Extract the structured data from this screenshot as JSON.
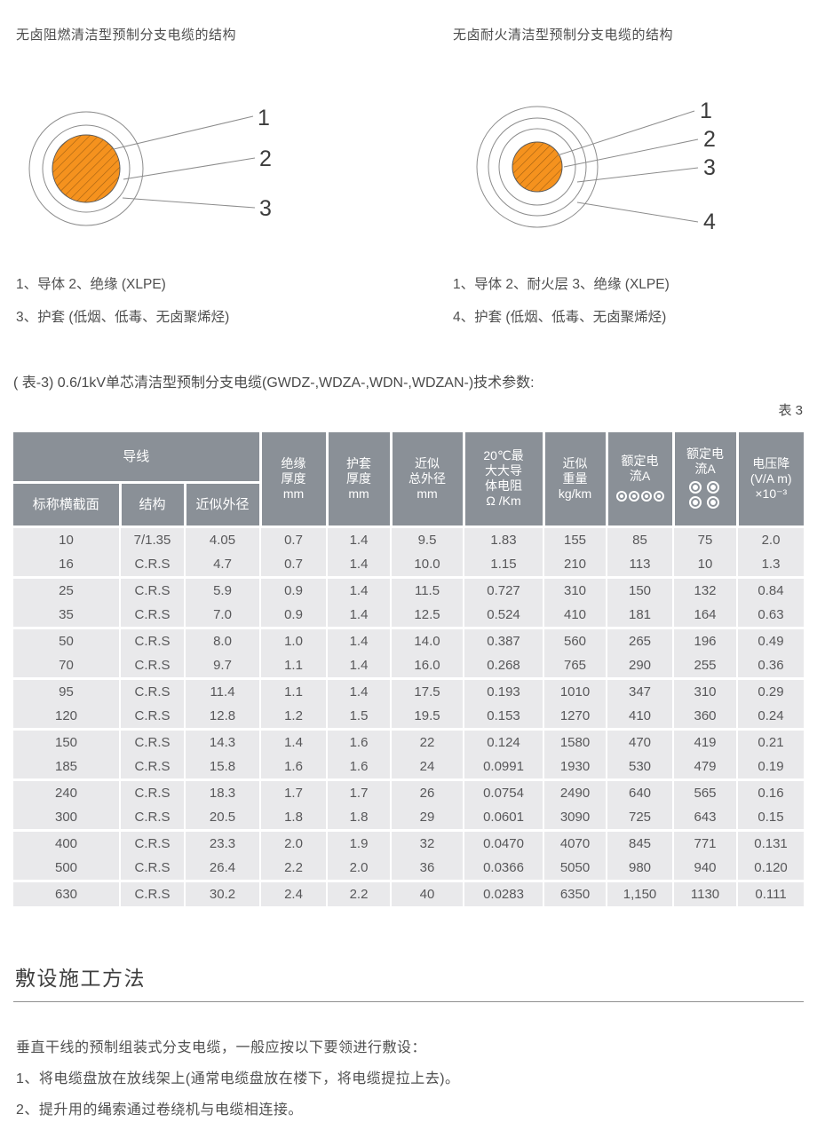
{
  "diagrams": {
    "left": {
      "title": "无卤阻燃清洁型预制分支电缆的结构",
      "callouts": [
        "1",
        "2",
        "3"
      ],
      "legend": [
        "1、导体  2、绝缘 (XLPE)",
        "3、护套 (低烟、低毒、无卤聚烯烃)"
      ]
    },
    "right": {
      "title": "无卤耐火清洁型预制分支电缆的结构",
      "callouts": [
        "1",
        "2",
        "3",
        "4"
      ],
      "legend": [
        "1、导体  2、耐火层  3、绝缘 (XLPE)",
        "4、护套 (低烟、低毒、无卤聚烯烃)"
      ]
    },
    "core_color": "#F5921E",
    "core_icon": "cable-cross-section"
  },
  "table": {
    "caption": "( 表-3) 0.6/1kV单芯清洁型预制分支电缆(GWDZ-,WDZA-,WDN-,WDZAN-)技术参数:",
    "corner_label": "表 3",
    "header_bg": "#8A9097",
    "row_bg": "#E9E9EB",
    "header": {
      "conductor_group": "导线",
      "conductor_sub": [
        "标称横截面",
        "结构",
        "近似外径"
      ],
      "insulation": [
        "绝缘",
        "厚度",
        "mm"
      ],
      "sheath": [
        "护套",
        "厚度",
        "mm"
      ],
      "overall_od": [
        "近似",
        "总外径",
        "mm"
      ],
      "resistance": [
        "20℃最",
        "大大导",
        "体电阻",
        "Ω /Km"
      ],
      "weight": [
        "近似",
        "重量",
        "kg/km"
      ],
      "rated_current_flat": [
        "额定电",
        "流A"
      ],
      "rated_current_grouped": [
        "额定电",
        "流A"
      ],
      "voltage_drop": [
        "电压降",
        "(V/A m)",
        "×10⁻³"
      ],
      "flat_icon": "four-circles-row-icon",
      "grouped_icon": "four-circles-grid-icon"
    },
    "rows": [
      [
        "10",
        "7/1.35",
        "4.05",
        "0.7",
        "1.4",
        "9.5",
        "1.83",
        "155",
        "85",
        "75",
        "2.0"
      ],
      [
        "16",
        "C.R.S",
        "4.7",
        "0.7",
        "1.4",
        "10.0",
        "1.15",
        "210",
        "113",
        "10",
        "1.3"
      ],
      [
        "25",
        "C.R.S",
        "5.9",
        "0.9",
        "1.4",
        "11.5",
        "0.727",
        "310",
        "150",
        "132",
        "0.84"
      ],
      [
        "35",
        "C.R.S",
        "7.0",
        "0.9",
        "1.4",
        "12.5",
        "0.524",
        "410",
        "181",
        "164",
        "0.63"
      ],
      [
        "50",
        "C.R.S",
        "8.0",
        "1.0",
        "1.4",
        "14.0",
        "0.387",
        "560",
        "265",
        "196",
        "0.49"
      ],
      [
        "70",
        "C.R.S",
        "9.7",
        "1.1",
        "1.4",
        "16.0",
        "0.268",
        "765",
        "290",
        "255",
        "0.36"
      ],
      [
        "95",
        "C.R.S",
        "11.4",
        "1.1",
        "1.4",
        "17.5",
        "0.193",
        "1010",
        "347",
        "310",
        "0.29"
      ],
      [
        "120",
        "C.R.S",
        "12.8",
        "1.2",
        "1.5",
        "19.5",
        "0.153",
        "1270",
        "410",
        "360",
        "0.24"
      ],
      [
        "150",
        "C.R.S",
        "14.3",
        "1.4",
        "1.6",
        "22",
        "0.124",
        "1580",
        "470",
        "419",
        "0.21"
      ],
      [
        "185",
        "C.R.S",
        "15.8",
        "1.6",
        "1.6",
        "24",
        "0.0991",
        "1930",
        "530",
        "479",
        "0.19"
      ],
      [
        "240",
        "C.R.S",
        "18.3",
        "1.7",
        "1.7",
        "26",
        "0.0754",
        "2490",
        "640",
        "565",
        "0.16"
      ],
      [
        "300",
        "C.R.S",
        "20.5",
        "1.8",
        "1.8",
        "29",
        "0.0601",
        "3090",
        "725",
        "643",
        "0.15"
      ],
      [
        "400",
        "C.R.S",
        "23.3",
        "2.0",
        "1.9",
        "32",
        "0.0470",
        "4070",
        "845",
        "771",
        "0.131"
      ],
      [
        "500",
        "C.R.S",
        "26.4",
        "2.2",
        "2.0",
        "36",
        "0.0366",
        "5050",
        "980",
        "940",
        "0.120"
      ],
      [
        "630",
        "C.R.S",
        "30.2",
        "2.4",
        "2.2",
        "40",
        "0.0283",
        "6350",
        "1,150",
        "1130",
        "0.111"
      ]
    ]
  },
  "section": {
    "heading": "敷设施工方法",
    "intro": "垂直干线的预制组装式分支电缆，一般应按以下要领进行敷设：",
    "steps": [
      "1、将电缆盘放在放线架上(通常电缆盘放在楼下，将电缆提拉上去)。",
      "2、提升用的绳索通过卷绕机与电缆相连接。"
    ]
  }
}
